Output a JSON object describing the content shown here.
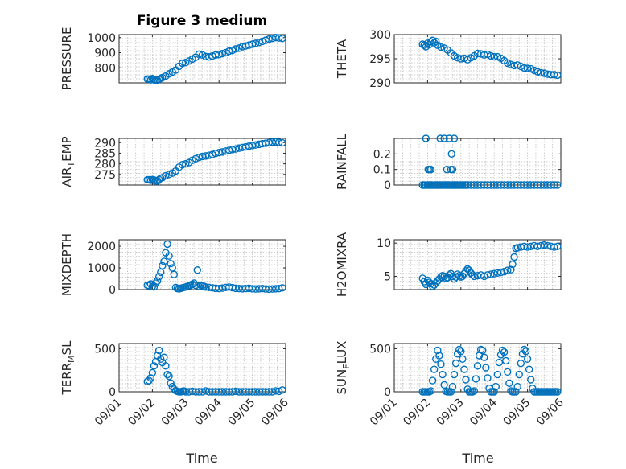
{
  "figure": {
    "title": "Figure 3 medium",
    "xlabel": "Time",
    "marker_color": "#0072bd"
  },
  "chart_data": [
    {
      "type": "scatter",
      "name": "pressure",
      "ylabel": "PRESSURE",
      "ylim": [
        700,
        1020
      ],
      "yticks": [
        800,
        900,
        1000
      ],
      "xlim": [
        0,
        5
      ],
      "xticks": [
        "09/01",
        "09/02",
        "09/03",
        "09/04",
        "09/05",
        "09/06"
      ],
      "show_xticks": false,
      "x": [
        0.85,
        0.9,
        0.95,
        1.0,
        1.05,
        1.1,
        1.15,
        1.2,
        1.25,
        1.3,
        1.4,
        1.5,
        1.6,
        1.7,
        1.8,
        1.9,
        2.0,
        2.1,
        2.2,
        2.3,
        2.4,
        2.5,
        2.6,
        2.7,
        2.8,
        2.9,
        3.0,
        3.1,
        3.2,
        3.3,
        3.4,
        3.5,
        3.6,
        3.7,
        3.8,
        3.9,
        4.0,
        4.1,
        4.2,
        4.3,
        4.4,
        4.5,
        4.6,
        4.7,
        4.8,
        4.9
      ],
      "y": [
        725,
        725,
        720,
        728,
        722,
        715,
        718,
        724,
        730,
        735,
        745,
        760,
        772,
        785,
        810,
        830,
        835,
        845,
        858,
        870,
        890,
        885,
        875,
        872,
        878,
        885,
        888,
        894,
        900,
        910,
        915,
        925,
        930,
        940,
        945,
        950,
        956,
        962,
        968,
        975,
        982,
        990,
        995,
        1000,
        998,
        995
      ]
    },
    {
      "type": "scatter",
      "name": "theta",
      "ylabel": "THETA",
      "ylim": [
        290,
        300
      ],
      "yticks": [
        290,
        295,
        300
      ],
      "xlim": [
        0,
        5
      ],
      "xticks": [
        "09/01",
        "09/02",
        "09/03",
        "09/04",
        "09/05",
        "09/06"
      ],
      "show_xticks": false,
      "x": [
        0.85,
        0.9,
        0.95,
        1.0,
        1.05,
        1.1,
        1.15,
        1.2,
        1.25,
        1.3,
        1.4,
        1.5,
        1.6,
        1.7,
        1.8,
        1.9,
        2.0,
        2.1,
        2.2,
        2.3,
        2.4,
        2.5,
        2.6,
        2.7,
        2.8,
        2.9,
        3.0,
        3.1,
        3.2,
        3.3,
        3.4,
        3.5,
        3.6,
        3.7,
        3.8,
        3.9,
        4.0,
        4.1,
        4.2,
        4.3,
        4.4,
        4.5,
        4.6,
        4.7,
        4.8,
        4.9
      ],
      "y": [
        298,
        297.8,
        297.5,
        298.2,
        297.9,
        298.5,
        298.8,
        298.3,
        298.6,
        297.8,
        297.4,
        297.2,
        296.8,
        296.2,
        295.6,
        295.2,
        295.0,
        295.1,
        294.8,
        295.2,
        295.6,
        296.1,
        296.0,
        295.8,
        295.9,
        295.6,
        295.4,
        295.4,
        295.1,
        294.6,
        294.1,
        293.8,
        293.6,
        293.7,
        293.4,
        293.1,
        293.0,
        292.9,
        292.6,
        292.3,
        292.1,
        292.0,
        291.8,
        291.7,
        291.7,
        291.6
      ]
    },
    {
      "type": "scatter",
      "name": "air_temp",
      "ylabel": "AIR_TEMP",
      "ylim": [
        270,
        292
      ],
      "yticks": [
        275,
        280,
        285,
        290
      ],
      "xlim": [
        0,
        5
      ],
      "xticks": [
        "09/01",
        "09/02",
        "09/03",
        "09/04",
        "09/05",
        "09/06"
      ],
      "show_xticks": false,
      "x": [
        0.85,
        0.9,
        0.95,
        1.0,
        1.05,
        1.1,
        1.15,
        1.2,
        1.25,
        1.3,
        1.4,
        1.5,
        1.6,
        1.7,
        1.8,
        1.9,
        2.0,
        2.1,
        2.2,
        2.3,
        2.4,
        2.5,
        2.6,
        2.7,
        2.8,
        2.9,
        3.0,
        3.1,
        3.2,
        3.3,
        3.4,
        3.5,
        3.6,
        3.7,
        3.8,
        3.9,
        4.0,
        4.1,
        4.2,
        4.3,
        4.4,
        4.5,
        4.6,
        4.7,
        4.8,
        4.9
      ],
      "y": [
        272.5,
        272.5,
        272.3,
        272.6,
        272.4,
        271.8,
        271.9,
        272.6,
        273.2,
        273.5,
        274.4,
        275.0,
        275.6,
        276.6,
        278.4,
        279.6,
        280.0,
        280.6,
        281.7,
        282.4,
        283.0,
        283.5,
        283.7,
        284.0,
        284.4,
        284.9,
        285.3,
        285.6,
        286.0,
        286.4,
        286.7,
        287.0,
        287.4,
        287.7,
        288.0,
        288.3,
        288.6,
        288.9,
        289.2,
        289.5,
        289.7,
        290.0,
        290.2,
        290.3,
        290.1,
        289.9
      ]
    },
    {
      "type": "scatter",
      "name": "rainfall",
      "ylabel": "RAINFALL",
      "ylim": [
        0,
        0.3
      ],
      "yticks": [
        0,
        0.1,
        0.2
      ],
      "xlim": [
        0,
        5
      ],
      "xticks": [
        "09/01",
        "09/02",
        "09/03",
        "09/04",
        "09/05",
        "09/06"
      ],
      "show_xticks": false,
      "x": [
        0.85,
        0.9,
        0.95,
        1.0,
        1.05,
        1.1,
        1.15,
        1.2,
        1.25,
        1.3,
        1.35,
        1.4,
        1.45,
        1.5,
        1.55,
        1.6,
        1.65,
        1.7,
        1.75,
        1.8,
        1.85,
        1.9,
        1.95,
        2.0,
        2.05,
        2.1,
        2.15,
        2.2,
        2.3,
        2.4,
        2.5,
        2.6,
        2.7,
        2.8,
        2.9,
        3.0,
        3.1,
        3.2,
        3.3,
        3.4,
        3.5,
        3.6,
        3.7,
        3.8,
        3.9,
        4.0,
        4.1,
        4.2,
        4.3,
        4.4,
        4.5,
        4.6,
        4.7,
        4.8,
        4.9,
        0.95,
        1.02,
        1.06,
        1.1,
        1.38,
        1.5,
        1.58,
        1.65,
        1.7,
        1.72,
        1.75,
        1.8
      ],
      "y": [
        0,
        0,
        0,
        0,
        0,
        0,
        0,
        0,
        0,
        0,
        0,
        0,
        0,
        0,
        0,
        0,
        0,
        0,
        0,
        0,
        0,
        0,
        0,
        0,
        0,
        0,
        0,
        0,
        0,
        0,
        0,
        0,
        0,
        0,
        0,
        0,
        0,
        0,
        0,
        0,
        0,
        0,
        0,
        0,
        0,
        0,
        0,
        0,
        0,
        0,
        0,
        0,
        0,
        0,
        0,
        0.3,
        0.1,
        0.1,
        0.1,
        0.3,
        0.3,
        0.1,
        0.3,
        0.1,
        0.2,
        0.1,
        0.3
      ]
    },
    {
      "type": "scatter",
      "name": "mixdepth",
      "ylabel": "MIXDEPTH",
      "ylim": [
        0,
        2300
      ],
      "yticks": [
        0,
        1000,
        2000
      ],
      "xlim": [
        0,
        5
      ],
      "xticks": [
        "09/01",
        "09/02",
        "09/03",
        "09/04",
        "09/05",
        "09/06"
      ],
      "show_xticks": false,
      "x": [
        0.85,
        0.9,
        0.95,
        1.0,
        1.05,
        1.1,
        1.15,
        1.2,
        1.25,
        1.3,
        1.35,
        1.4,
        1.45,
        1.5,
        1.55,
        1.6,
        1.65,
        1.7,
        1.75,
        1.8,
        1.85,
        1.9,
        1.95,
        2.0,
        2.05,
        2.1,
        2.15,
        2.2,
        2.25,
        2.3,
        2.35,
        2.4,
        2.45,
        2.5,
        2.55,
        2.6,
        2.7,
        2.8,
        2.9,
        3.0,
        3.1,
        3.2,
        3.3,
        3.4,
        3.5,
        3.6,
        3.7,
        3.8,
        3.9,
        4.0,
        4.1,
        4.2,
        4.3,
        4.4,
        4.5,
        4.6,
        4.7,
        4.8,
        4.9
      ],
      "y": [
        200,
        180,
        260,
        150,
        120,
        300,
        400,
        600,
        800,
        1100,
        1300,
        1700,
        2100,
        1550,
        1200,
        1000,
        700,
        100,
        50,
        40,
        60,
        80,
        100,
        120,
        150,
        180,
        200,
        250,
        300,
        200,
        900,
        150,
        200,
        180,
        150,
        120,
        100,
        80,
        60,
        50,
        70,
        100,
        120,
        90,
        60,
        50,
        40,
        50,
        60,
        40,
        30,
        40,
        50,
        30,
        20,
        30,
        40,
        50,
        80
      ]
    },
    {
      "type": "scatter",
      "name": "h2omixra",
      "ylabel": "H2OMIXRA",
      "ylim": [
        3,
        10.5
      ],
      "yticks": [
        5,
        10
      ],
      "xlim": [
        0,
        5
      ],
      "xticks": [
        "09/01",
        "09/02",
        "09/03",
        "09/04",
        "09/05",
        "09/06"
      ],
      "show_xticks": false,
      "x": [
        0.85,
        0.9,
        0.95,
        1.0,
        1.05,
        1.1,
        1.15,
        1.2,
        1.25,
        1.3,
        1.35,
        1.4,
        1.45,
        1.5,
        1.55,
        1.6,
        1.65,
        1.7,
        1.75,
        1.8,
        1.85,
        1.9,
        1.95,
        2.0,
        2.05,
        2.1,
        2.15,
        2.2,
        2.25,
        2.3,
        2.35,
        2.4,
        2.5,
        2.6,
        2.7,
        2.8,
        2.9,
        3.0,
        3.1,
        3.2,
        3.3,
        3.4,
        3.5,
        3.55,
        3.6,
        3.65,
        3.7,
        3.8,
        3.9,
        4.0,
        4.1,
        4.2,
        4.3,
        4.4,
        4.5,
        4.6,
        4.7,
        4.8,
        4.9
      ],
      "y": [
        4.7,
        4.2,
        3.8,
        4.4,
        4.1,
        3.9,
        3.5,
        3.7,
        4.0,
        4.3,
        4.6,
        4.9,
        5.1,
        5.0,
        4.7,
        4.8,
        5.2,
        5.4,
        5.0,
        4.6,
        4.9,
        5.3,
        5.1,
        4.9,
        5.0,
        5.4,
        5.8,
        6.1,
        5.9,
        5.5,
        5.2,
        5.0,
        5.1,
        5.2,
        5.0,
        5.2,
        5.3,
        5.4,
        5.5,
        5.6,
        5.7,
        5.9,
        6.0,
        6.8,
        7.9,
        9.2,
        9.3,
        9.4,
        9.5,
        9.4,
        9.5,
        9.6,
        9.5,
        9.6,
        9.7,
        9.6,
        9.5,
        9.4,
        9.5
      ]
    },
    {
      "type": "scatter",
      "name": "terr_msl",
      "ylabel": "TERR_MSL",
      "ylim": [
        0,
        560
      ],
      "yticks": [
        0,
        500
      ],
      "xlim": [
        0,
        5
      ],
      "xticks": [
        "09/01",
        "09/02",
        "09/03",
        "09/04",
        "09/05",
        "09/06"
      ],
      "show_xticks": true,
      "x": [
        0.85,
        0.9,
        0.95,
        1.0,
        1.05,
        1.1,
        1.15,
        1.2,
        1.25,
        1.3,
        1.35,
        1.4,
        1.45,
        1.5,
        1.55,
        1.6,
        1.65,
        1.7,
        1.75,
        1.8,
        1.85,
        1.9,
        1.95,
        2.0,
        2.1,
        2.2,
        2.3,
        2.4,
        2.5,
        2.6,
        2.7,
        2.8,
        2.9,
        3.0,
        3.1,
        3.2,
        3.3,
        3.4,
        3.5,
        3.6,
        3.7,
        3.8,
        3.9,
        4.0,
        4.1,
        4.2,
        4.3,
        4.4,
        4.5,
        4.6,
        4.7,
        4.8,
        4.9
      ],
      "y": [
        120,
        130,
        160,
        220,
        300,
        350,
        420,
        480,
        380,
        340,
        400,
        300,
        200,
        180,
        100,
        60,
        30,
        15,
        5,
        0,
        0,
        5,
        10,
        0,
        0,
        5,
        0,
        0,
        0,
        10,
        0,
        0,
        0,
        0,
        0,
        0,
        0,
        0,
        5,
        0,
        0,
        0,
        0,
        0,
        0,
        0,
        0,
        0,
        0,
        0,
        10,
        5,
        20
      ]
    },
    {
      "type": "scatter",
      "name": "sun_flux",
      "ylabel": "SUN_FLUX",
      "ylim": [
        0,
        560
      ],
      "yticks": [
        0,
        500
      ],
      "xlim": [
        0,
        5
      ],
      "xticks": [
        "09/01",
        "09/02",
        "09/03",
        "09/04",
        "09/05",
        "09/06"
      ],
      "show_xticks": true,
      "x": [
        0.85,
        0.9,
        0.95,
        1.0,
        1.05,
        1.1,
        1.15,
        1.2,
        1.25,
        1.3,
        1.35,
        1.4,
        1.45,
        1.5,
        1.55,
        1.6,
        1.65,
        1.7,
        1.75,
        1.8,
        1.85,
        1.9,
        1.95,
        2.0,
        2.05,
        2.1,
        2.15,
        2.2,
        2.25,
        2.3,
        2.35,
        2.4,
        2.45,
        2.5,
        2.55,
        2.6,
        2.65,
        2.7,
        2.75,
        2.8,
        2.85,
        2.9,
        2.95,
        3.0,
        3.05,
        3.1,
        3.15,
        3.2,
        3.25,
        3.3,
        3.35,
        3.4,
        3.45,
        3.5,
        3.55,
        3.6,
        3.65,
        3.7,
        3.75,
        3.8,
        3.85,
        3.9,
        3.95,
        4.0,
        4.05,
        4.1,
        4.15,
        4.2,
        4.25,
        4.3,
        4.35,
        4.4,
        4.45,
        4.5,
        4.55,
        4.6,
        4.65,
        4.7,
        4.75,
        4.8,
        4.85,
        4.9
      ],
      "y": [
        0,
        0,
        0,
        0,
        0,
        10,
        130,
        260,
        380,
        480,
        420,
        320,
        200,
        80,
        5,
        0,
        0,
        0,
        60,
        200,
        330,
        440,
        490,
        470,
        380,
        260,
        140,
        30,
        0,
        0,
        0,
        10,
        150,
        300,
        420,
        490,
        480,
        400,
        280,
        160,
        40,
        0,
        0,
        0,
        60,
        200,
        340,
        430,
        480,
        460,
        360,
        230,
        100,
        10,
        0,
        0,
        0,
        60,
        200,
        330,
        440,
        490,
        470,
        380,
        260,
        140,
        40,
        0,
        0,
        0,
        0,
        0,
        0,
        0,
        0,
        0,
        0,
        0,
        0,
        0,
        0,
        0
      ]
    }
  ]
}
